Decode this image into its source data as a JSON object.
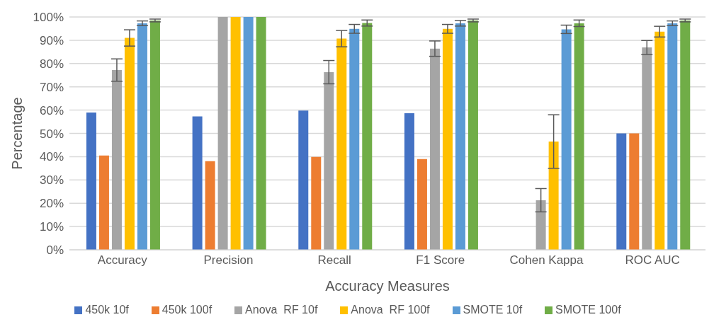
{
  "chart_data": {
    "type": "bar",
    "xlabel": "Accuracy Measures",
    "ylabel": "Percentage",
    "categories": [
      "Accuracy",
      "Precision",
      "Recall",
      "F1 Score",
      "Cohen Kappa",
      "ROC AUC"
    ],
    "series": [
      {
        "name": "450k 10f",
        "color": "#4472c4",
        "values": [
          59,
          57.3,
          59.8,
          58.7,
          null,
          50
        ]
      },
      {
        "name": "450k 100f",
        "color": "#ed7d31",
        "values": [
          40.5,
          38.1,
          39.9,
          39,
          null,
          50
        ]
      },
      {
        "name": "Anova  RF 10f",
        "color": "#a5a5a5",
        "values": [
          77.2,
          100,
          76.3,
          86.4,
          21.3,
          86.9
        ],
        "errors": [
          4.8,
          null,
          5,
          3.3,
          5,
          3
        ]
      },
      {
        "name": "Anova  RF 100f",
        "color": "#ffc000",
        "values": [
          91,
          100,
          90.7,
          94.9,
          46.5,
          93.7
        ],
        "errors": [
          3.5,
          null,
          3.5,
          1.9,
          11.5,
          2.3
        ]
      },
      {
        "name": "SMOTE 10f",
        "color": "#5b9bd5",
        "values": [
          97.3,
          100,
          94.9,
          97.3,
          94.7,
          97.3
        ],
        "errors": [
          1,
          null,
          1.9,
          1.2,
          1.8,
          1
        ]
      },
      {
        "name": "SMOTE 100f",
        "color": "#70ad47",
        "values": [
          98.5,
          100,
          97.4,
          98.5,
          97.3,
          98.5
        ],
        "errors": [
          0.6,
          null,
          1.3,
          0.6,
          1.4,
          0.6
        ]
      }
    ],
    "ylim": [
      0,
      100
    ],
    "yticks": [
      {
        "value": 0,
        "label": "0%"
      },
      {
        "value": 10,
        "label": "10%"
      },
      {
        "value": 20,
        "label": "20%"
      },
      {
        "value": 30,
        "label": "30%"
      },
      {
        "value": 40,
        "label": "40%"
      },
      {
        "value": 50,
        "label": "50%"
      },
      {
        "value": 60,
        "label": "60%"
      },
      {
        "value": 70,
        "label": "70%"
      },
      {
        "value": 80,
        "label": "80%"
      },
      {
        "value": 90,
        "label": "90%"
      },
      {
        "value": 100,
        "label": "100%"
      }
    ],
    "grid": "y",
    "legend": "bottom"
  }
}
